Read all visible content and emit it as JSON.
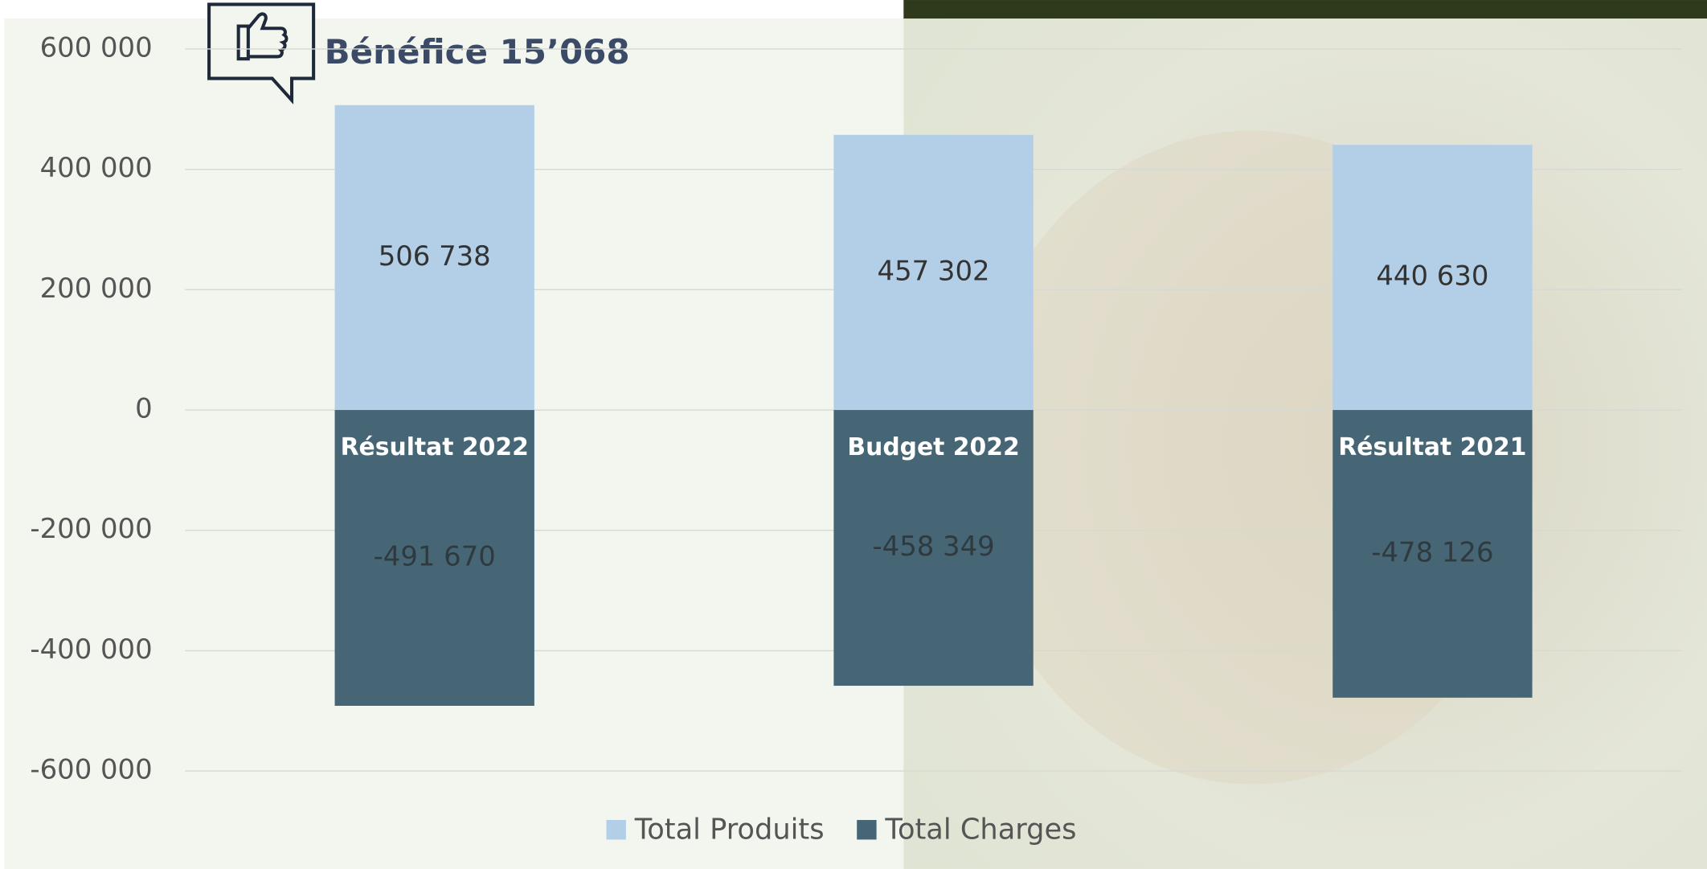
{
  "chart_data": {
    "type": "bar",
    "title": "Bénéfice 15’068",
    "categories": [
      "Résultat 2022",
      "Budget 2022",
      "Résultat 2021"
    ],
    "series": [
      {
        "name": "Total Produits",
        "color": "#b3cfe8",
        "values": [
          506738,
          457302,
          440630
        ],
        "value_labels": [
          "506 738",
          "457 302",
          "440 630"
        ]
      },
      {
        "name": "Total Charges",
        "color": "#466675",
        "values": [
          -491670,
          -458349,
          -478126
        ],
        "value_labels": [
          "-491 670",
          "-458 349",
          "-478 126"
        ]
      }
    ],
    "ylim": [
      -600000,
      600000
    ],
    "yticks": [
      {
        "value": -600000,
        "label": "-600 000"
      },
      {
        "value": -400000,
        "label": "-400 000"
      },
      {
        "value": -200000,
        "label": "-200 000"
      },
      0,
      {
        "value": 200000,
        "label": "200 000"
      },
      {
        "value": 400000,
        "label": "400 000"
      },
      {
        "value": 600000,
        "label": "600 000"
      }
    ],
    "grid": true,
    "stacked": true,
    "legend": "bottom"
  }
}
